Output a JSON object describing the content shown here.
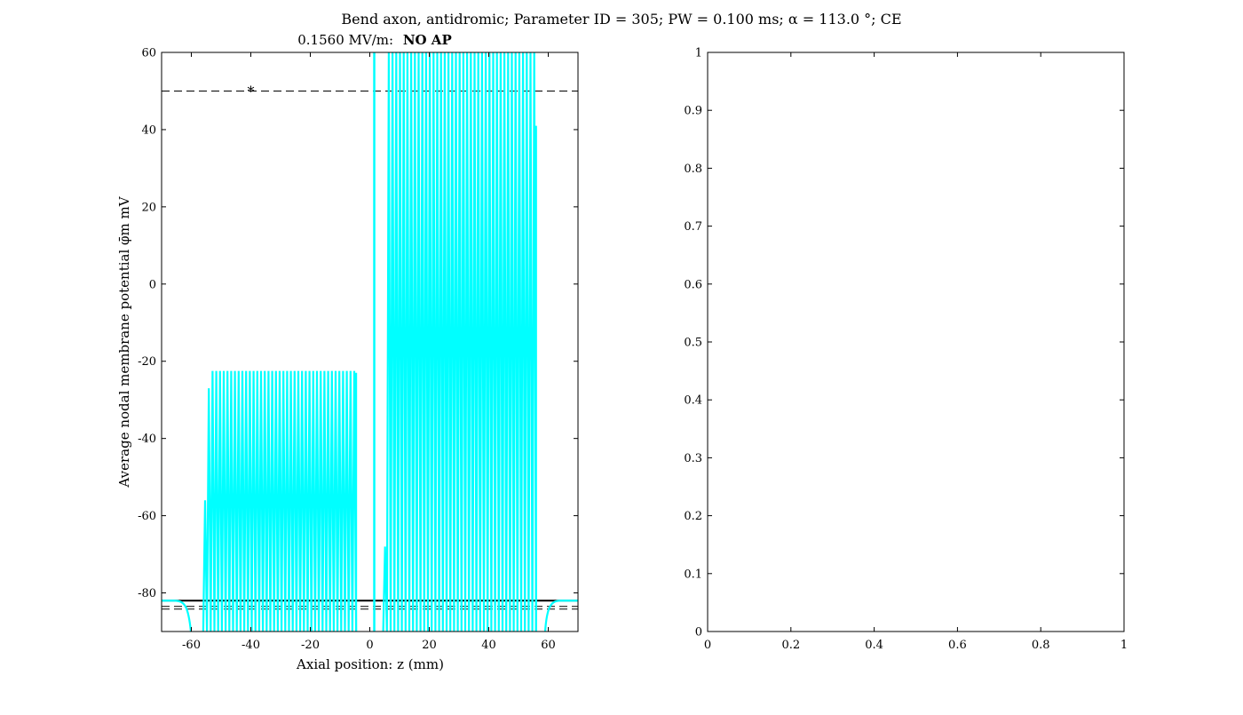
{
  "figure": {
    "title": "Bend axon, antidromic; Parameter ID = 305; PW = 0.100 ms; α = 113.0 °; CE"
  },
  "chart_data": [
    {
      "type": "line",
      "subtitle_value": "0.1560 MV/m:",
      "subtitle_status": "NO AP",
      "xlabel": "Axial position: z (mm)",
      "ylabel": "Average nodal membrane potential φ̄m mV",
      "xlim": [
        -70,
        70
      ],
      "ylim": [
        -90,
        60
      ],
      "xticks": [
        -60,
        -40,
        -20,
        0,
        20,
        40,
        60
      ],
      "yticks": [
        -80,
        -60,
        -40,
        -20,
        0,
        20,
        40,
        60
      ],
      "grid": false,
      "reference_lines": [
        {
          "style": "solid",
          "y": -82,
          "color": "#000000"
        },
        {
          "style": "dashed",
          "y": -83.5,
          "color": "#000000"
        },
        {
          "style": "dashed",
          "y": -84.2,
          "color": "#000000"
        },
        {
          "style": "dashed",
          "y": 50,
          "color": "#000000"
        }
      ],
      "marker": {
        "symbol": "*",
        "x": -40,
        "y": 50,
        "color": "#000000"
      },
      "series_color": "#00ffff",
      "segments": [
        {
          "x_start": -56,
          "x_end": -5.5,
          "low": -90,
          "high": -22.5,
          "edge_high": [
            -56,
            -27,
            -23
          ]
        },
        {
          "x_start": 4.5,
          "x_end": 55,
          "low": -90,
          "high": 60,
          "edge_high": [
            -68,
            41
          ]
        }
      ],
      "spike_at_zero": {
        "x": 1.5,
        "low": -90,
        "high": 60
      },
      "tails": {
        "left_x": [
          -70,
          -56
        ],
        "right_x": [
          55,
          70
        ],
        "rest": -82
      }
    },
    {
      "type": "line",
      "xlim": [
        0,
        1
      ],
      "ylim": [
        0,
        1
      ],
      "xticks": [
        0,
        0.2,
        0.4,
        0.6,
        0.8,
        1
      ],
      "yticks": [
        0,
        0.1,
        0.2,
        0.3,
        0.4,
        0.5,
        0.6,
        0.7,
        0.8,
        0.9,
        1
      ],
      "series": []
    }
  ]
}
